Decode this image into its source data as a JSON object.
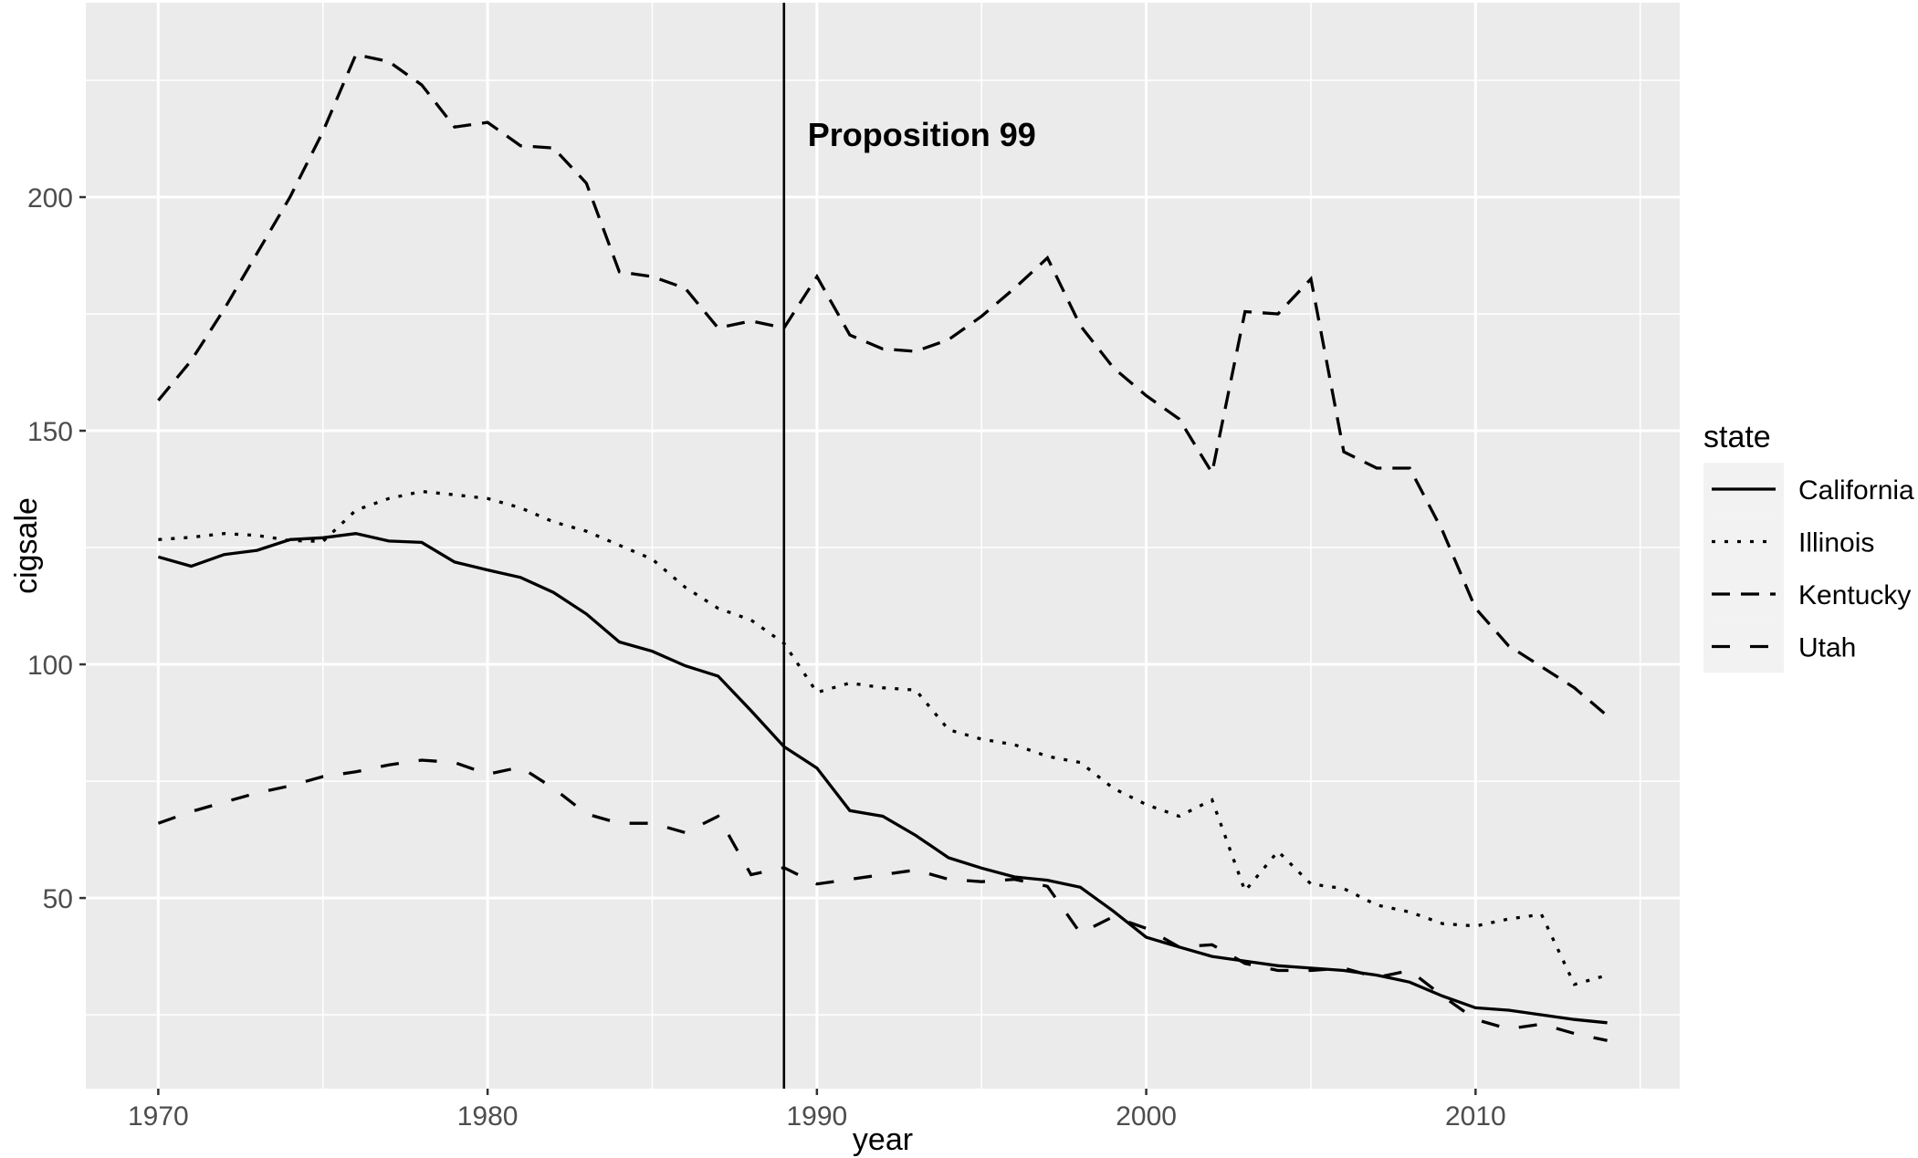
{
  "chart_data": {
    "type": "line",
    "title": "",
    "xlabel": "year",
    "ylabel": "cigsale",
    "x_tick_labels": [
      "1970",
      "1980",
      "1990",
      "2000",
      "2010"
    ],
    "x_ticks": [
      1970,
      1980,
      1990,
      2000,
      2010
    ],
    "x_minor_ticks": [
      1975,
      1985,
      1995,
      2005,
      2015
    ],
    "y_tick_labels": [
      "50",
      "100",
      "150",
      "200"
    ],
    "y_ticks": [
      50,
      100,
      150,
      200
    ],
    "y_minor_ticks": [
      25,
      75,
      125,
      175,
      225
    ],
    "xlim": [
      1967.8,
      2016.2
    ],
    "ylim": [
      9.2,
      241.6
    ],
    "grid": true,
    "legend_position": "right",
    "panel_color": "#EBEBEB",
    "grid_color": "#FFFFFF",
    "line_color": "#000000",
    "vline": {
      "x": 1989,
      "label": "Proposition 99"
    },
    "x": [
      1970,
      1971,
      1972,
      1973,
      1974,
      1975,
      1976,
      1977,
      1978,
      1979,
      1980,
      1981,
      1982,
      1983,
      1984,
      1985,
      1986,
      1987,
      1988,
      1989,
      1990,
      1991,
      1992,
      1993,
      1994,
      1995,
      1996,
      1997,
      1998,
      1999,
      2000,
      2001,
      2002,
      2003,
      2004,
      2005,
      2006,
      2007,
      2008,
      2009,
      2010,
      2011,
      2012,
      2013,
      2014
    ],
    "series": [
      {
        "name": "California",
        "linetype": "solid",
        "values": [
          123,
          121,
          123.5,
          124.4,
          126.7,
          127.1,
          128,
          126.4,
          126.1,
          121.9,
          120.2,
          118.6,
          115.4,
          110.8,
          104.8,
          102.8,
          99.7,
          97.5,
          90.1,
          82.4,
          77.8,
          68.7,
          67.5,
          63.4,
          58.6,
          56.4,
          54.5,
          53.8,
          52.3,
          47.2,
          41.6,
          39.5,
          37.5,
          36.5,
          35.5,
          35,
          34.5,
          33.5,
          32,
          29,
          26.5,
          26,
          25,
          24,
          23.3
        ]
      },
      {
        "name": "Illinois",
        "linetype": "dotted",
        "values": [
          126.7,
          127.2,
          128,
          127.6,
          126.5,
          126.3,
          133,
          135.5,
          137,
          136.3,
          135.5,
          133.5,
          130.5,
          128.5,
          125.5,
          122.5,
          116.5,
          112,
          109.5,
          104.5,
          94,
          96,
          95,
          94.5,
          86,
          84,
          82.8,
          80.3,
          79,
          73.5,
          70,
          67.5,
          71,
          51.5,
          60,
          53,
          52,
          48.5,
          47,
          44.5,
          44,
          45.5,
          46.5,
          31.5,
          33.5
        ]
      },
      {
        "name": "Kentucky",
        "linetype": "dashed",
        "values": [
          156.5,
          165,
          176,
          188,
          200,
          214,
          230.5,
          229,
          224,
          215,
          216,
          211,
          210.5,
          203,
          184,
          183,
          180.5,
          172,
          173.5,
          172,
          183,
          170.5,
          167.5,
          167,
          169.5,
          174.5,
          180.5,
          187,
          172.5,
          163.5,
          157.5,
          152.5,
          141,
          175.5,
          175,
          182.5,
          145.5,
          142,
          142,
          128.5,
          112,
          104,
          99.5,
          95,
          89
        ]
      },
      {
        "name": "Utah",
        "linetype": "longdash",
        "values": [
          66,
          68.5,
          70.5,
          72.5,
          74,
          76,
          77,
          78.5,
          79.5,
          79,
          76.5,
          78,
          73.5,
          68,
          66,
          66,
          64,
          67.5,
          55,
          56.5,
          53,
          54,
          55,
          56,
          54,
          53.5,
          54,
          52.5,
          42.5,
          46,
          43.5,
          39.5,
          40,
          36,
          34.5,
          34.5,
          35,
          33,
          34.5,
          29,
          24,
          22,
          23,
          21,
          19.5
        ]
      }
    ]
  },
  "legend": {
    "title": "state",
    "items": [
      "California",
      "Illinois",
      "Kentucky",
      "Utah"
    ]
  }
}
